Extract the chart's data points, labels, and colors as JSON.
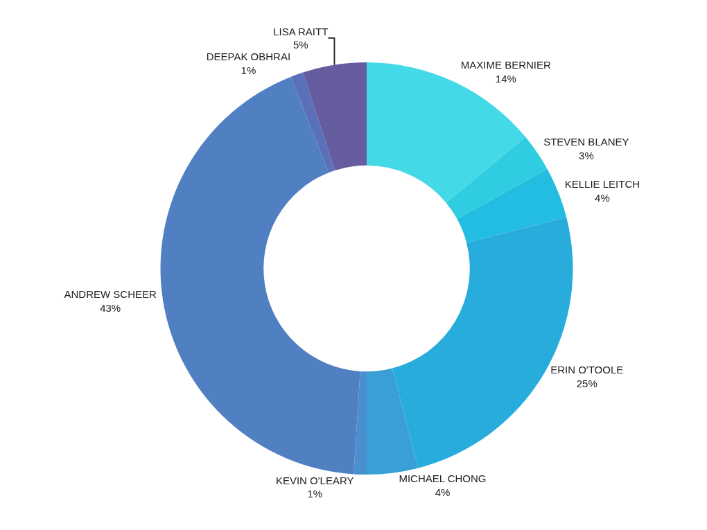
{
  "chart_data": {
    "type": "donut",
    "categories": [
      "MAXIME BERNIER",
      "STEVEN BLANEY",
      "KELLIE LEITCH",
      "ERIN O'TOOLE",
      "MICHAEL CHONG",
      "KEVIN O'LEARY",
      "ANDREW SCHEER",
      "DEEPAK OBHRAI",
      "LISA RAITT"
    ],
    "values": [
      14,
      3,
      4,
      25,
      4,
      1,
      43,
      1,
      5
    ],
    "value_labels": [
      "14%",
      "3%",
      "4%",
      "25%",
      "4%",
      "1%",
      "43%",
      "1%",
      "5%"
    ],
    "colors": [
      "#44d9e6",
      "#30cde2",
      "#22bde0",
      "#28acdc",
      "#3a9fd6",
      "#4a8fce",
      "#5080c2",
      "#5a70b8",
      "#665da0"
    ],
    "legend": false
  }
}
